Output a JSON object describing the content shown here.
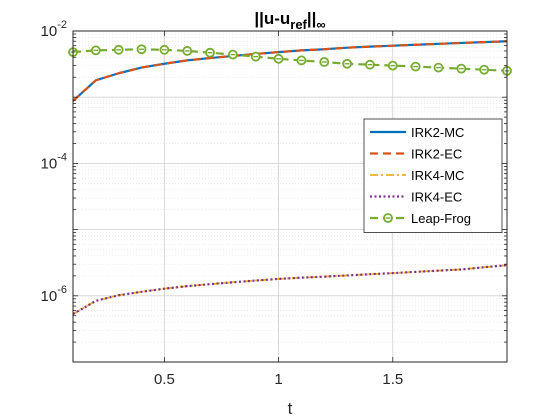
{
  "chart_data": {
    "type": "line",
    "title_main": "||u-u",
    "title_sub": "ref",
    "title_close": "||",
    "title_inf": "∞",
    "xlabel": "t",
    "ylabel": "",
    "xlim": [
      0.1,
      2.0
    ],
    "ylim": [
      1e-07,
      0.01
    ],
    "yscale": "log",
    "grid": true,
    "minor_grid": true,
    "legend_position": "right-middle",
    "xticks": [
      0.5,
      1.0,
      1.5
    ],
    "xtick_labels": [
      "0.5",
      "1",
      "1.5"
    ],
    "yticks": [
      {
        "value": 1e-06,
        "base": "10",
        "exp": "-6"
      },
      {
        "value": 0.0001,
        "base": "10",
        "exp": "-4"
      },
      {
        "value": 0.01,
        "base": "10",
        "exp": "-2"
      }
    ],
    "series": [
      {
        "name": "IRK2-MC",
        "color": "#0072BD",
        "style": "solid",
        "width": 2.2,
        "x": [
          0.1,
          0.2,
          0.3,
          0.4,
          0.5,
          0.6,
          0.7,
          0.8,
          0.9,
          1.0,
          1.1,
          1.2,
          1.3,
          1.4,
          1.5,
          1.6,
          1.7,
          1.8,
          1.9,
          2.0
        ],
        "y": [
          0.00088,
          0.0018,
          0.0023,
          0.0028,
          0.0032,
          0.0036,
          0.0039,
          0.0042,
          0.0045,
          0.0048,
          0.0051,
          0.0053,
          0.0056,
          0.0058,
          0.006,
          0.0062,
          0.0064,
          0.0066,
          0.0068,
          0.007
        ]
      },
      {
        "name": "IRK2-EC",
        "color": "#D95319",
        "style": "dashed",
        "width": 2.2,
        "x": [
          0.1,
          0.2,
          0.3,
          0.4,
          0.5,
          0.6,
          0.7,
          0.8,
          0.9,
          1.0,
          1.1,
          1.2,
          1.3,
          1.4,
          1.5,
          1.6,
          1.7,
          1.8,
          1.9,
          2.0
        ],
        "y": [
          0.00088,
          0.0018,
          0.0023,
          0.0028,
          0.0032,
          0.0036,
          0.0039,
          0.0042,
          0.0045,
          0.0048,
          0.0051,
          0.0053,
          0.0056,
          0.0058,
          0.006,
          0.0062,
          0.0064,
          0.0066,
          0.0068,
          0.007
        ]
      },
      {
        "name": "IRK4-MC",
        "color": "#EDB120",
        "style": "dashdot",
        "width": 1.8,
        "x": [
          0.1,
          0.2,
          0.3,
          0.4,
          0.5,
          0.6,
          0.7,
          0.8,
          0.9,
          1.0,
          1.1,
          1.2,
          1.3,
          1.4,
          1.5,
          1.6,
          1.7,
          1.8,
          1.9,
          2.0
        ],
        "y": [
          5.3e-07,
          8.4e-07,
          1.02e-06,
          1.15e-06,
          1.28e-06,
          1.4e-06,
          1.5e-06,
          1.6e-06,
          1.7e-06,
          1.8e-06,
          1.88e-06,
          1.95e-06,
          2.03e-06,
          2.12e-06,
          2.2e-06,
          2.3e-06,
          2.4e-06,
          2.5e-06,
          2.7e-06,
          2.9e-06
        ]
      },
      {
        "name": "IRK4-EC",
        "color": "#7E2F8E",
        "style": "dotted",
        "width": 2.2,
        "x": [
          0.1,
          0.2,
          0.3,
          0.4,
          0.5,
          0.6,
          0.7,
          0.8,
          0.9,
          1.0,
          1.1,
          1.2,
          1.3,
          1.4,
          1.5,
          1.6,
          1.7,
          1.8,
          1.9,
          2.0
        ],
        "y": [
          5.3e-07,
          8.4e-07,
          1.02e-06,
          1.15e-06,
          1.28e-06,
          1.4e-06,
          1.5e-06,
          1.6e-06,
          1.7e-06,
          1.8e-06,
          1.88e-06,
          1.95e-06,
          2.03e-06,
          2.12e-06,
          2.2e-06,
          2.3e-06,
          2.4e-06,
          2.5e-06,
          2.7e-06,
          2.9e-06
        ]
      },
      {
        "name": "Leap-Frog",
        "color": "#77AC30",
        "style": "dashed",
        "width": 2.2,
        "marker": "circle",
        "x": [
          0.1,
          0.2,
          0.3,
          0.4,
          0.5,
          0.6,
          0.7,
          0.8,
          0.9,
          1.0,
          1.1,
          1.2,
          1.3,
          1.4,
          1.5,
          1.6,
          1.7,
          1.8,
          1.9,
          2.0
        ],
        "y": [
          0.0048,
          0.0051,
          0.0052,
          0.0053,
          0.0052,
          0.005,
          0.0047,
          0.0044,
          0.0041,
          0.0038,
          0.0036,
          0.0034,
          0.0032,
          0.0031,
          0.003,
          0.0029,
          0.0028,
          0.0027,
          0.0026,
          0.0025
        ]
      }
    ]
  }
}
